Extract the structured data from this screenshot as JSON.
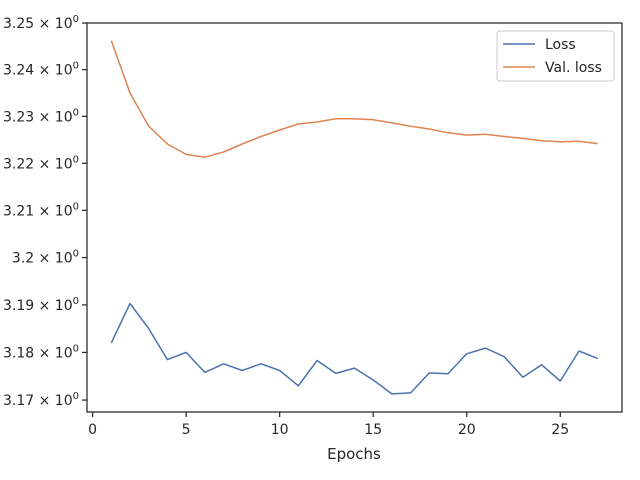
{
  "chart_data": {
    "type": "line",
    "xlabel": "Epochs",
    "ylabel": "",
    "xlim": [
      -0.3,
      28.3
    ],
    "ylim": [
      3.1675,
      3.25
    ],
    "y_scale": "log",
    "xticks": [
      0,
      5,
      10,
      15,
      20,
      25
    ],
    "xtick_labels": [
      "0",
      "5",
      "10",
      "15",
      "20",
      "25"
    ],
    "yticks": [
      3.17,
      3.18,
      3.19,
      3.2,
      3.21,
      3.22,
      3.23,
      3.24,
      3.25
    ],
    "ytick_labels": [
      {
        "mantissa": "3.17",
        "exp": "0"
      },
      {
        "mantissa": "3.18",
        "exp": "0"
      },
      {
        "mantissa": "3.19",
        "exp": "0"
      },
      {
        "mantissa": "3.2",
        "exp": "0"
      },
      {
        "mantissa": "3.21",
        "exp": "0"
      },
      {
        "mantissa": "3.22",
        "exp": "0"
      },
      {
        "mantissa": "3.23",
        "exp": "0"
      },
      {
        "mantissa": "3.24",
        "exp": "0"
      },
      {
        "mantissa": "3.25",
        "exp": "0"
      }
    ],
    "grid": false,
    "legend_position": "top-right",
    "x": [
      1,
      2,
      3,
      4,
      5,
      6,
      7,
      8,
      9,
      10,
      11,
      12,
      13,
      14,
      15,
      16,
      17,
      18,
      19,
      20,
      21,
      22,
      23,
      24,
      25,
      26,
      27
    ],
    "series": [
      {
        "name": "Loss",
        "color": "#4c72b0",
        "values": [
          3.182,
          3.1903,
          3.185,
          3.1785,
          3.18,
          3.1758,
          3.1776,
          3.1762,
          3.1776,
          3.1762,
          3.173,
          3.1783,
          3.1756,
          3.1767,
          3.1742,
          3.1713,
          3.1715,
          3.1757,
          3.1755,
          3.1797,
          3.1809,
          3.1791,
          3.1748,
          3.1774,
          3.174,
          3.1803,
          3.1787
        ]
      },
      {
        "name": "Val. loss",
        "color": "#dd8452",
        "values": [
          3.2462,
          3.235,
          3.2279,
          3.2241,
          3.2219,
          3.2213,
          3.2224,
          3.2241,
          3.2257,
          3.2271,
          3.2284,
          3.2288,
          3.2295,
          3.2295,
          3.2293,
          3.2286,
          3.2279,
          3.2273,
          3.2265,
          3.226,
          3.2262,
          3.2257,
          3.2253,
          3.2248,
          3.2246,
          3.2247,
          3.2242
        ]
      }
    ]
  }
}
